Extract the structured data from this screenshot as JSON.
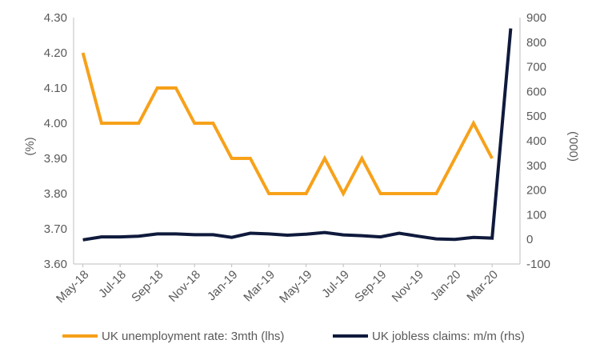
{
  "chart_data": {
    "type": "line",
    "title": "",
    "x": [
      "May-18",
      "Jun-18",
      "Jul-18",
      "Aug-18",
      "Sep-18",
      "Oct-18",
      "Nov-18",
      "Dec-18",
      "Jan-19",
      "Feb-19",
      "Mar-19",
      "Apr-19",
      "May-19",
      "Jun-19",
      "Jul-19",
      "Aug-19",
      "Sep-19",
      "Oct-19",
      "Nov-19",
      "Dec-19",
      "Jan-20",
      "Feb-20",
      "Mar-20",
      "Apr-20"
    ],
    "x_tick_labels": [
      "May-18",
      "Jul-18",
      "Sep-18",
      "Nov-18",
      "Jan-19",
      "Mar-19",
      "May-19",
      "Jul-19",
      "Sep-19",
      "Nov-19",
      "Jan-20",
      "Mar-20"
    ],
    "ylabel_left": "(%)",
    "ylabel_right": "('000)",
    "ylim_left": [
      3.6,
      4.3
    ],
    "yticks_left": [
      "3.60",
      "3.70",
      "3.80",
      "3.90",
      "4.00",
      "4.10",
      "4.20",
      "4.30"
    ],
    "ylim_right": [
      -100,
      900
    ],
    "yticks_right": [
      "-100",
      "0",
      "100",
      "200",
      "300",
      "400",
      "500",
      "600",
      "700",
      "800",
      "900"
    ],
    "legend_position": "bottom",
    "series": [
      {
        "name": "UK unemployment rate: 3mth (lhs)",
        "axis": "left",
        "color": "#F7A11A",
        "values": [
          4.2,
          4.0,
          4.0,
          4.0,
          4.1,
          4.1,
          4.0,
          4.0,
          3.9,
          3.9,
          3.8,
          3.8,
          3.8,
          3.9,
          3.8,
          3.9,
          3.8,
          3.8,
          3.8,
          3.8,
          3.9,
          4.0,
          3.9,
          null
        ]
      },
      {
        "name": "UK jobless claims: m/m (rhs)",
        "axis": "right",
        "color": "#0F1A3C",
        "values": [
          -2,
          10,
          10,
          13,
          22,
          22,
          19,
          19,
          8,
          25,
          22,
          17,
          21,
          28,
          18,
          15,
          10,
          25,
          13,
          2,
          0,
          8,
          5,
          856
        ]
      }
    ]
  }
}
